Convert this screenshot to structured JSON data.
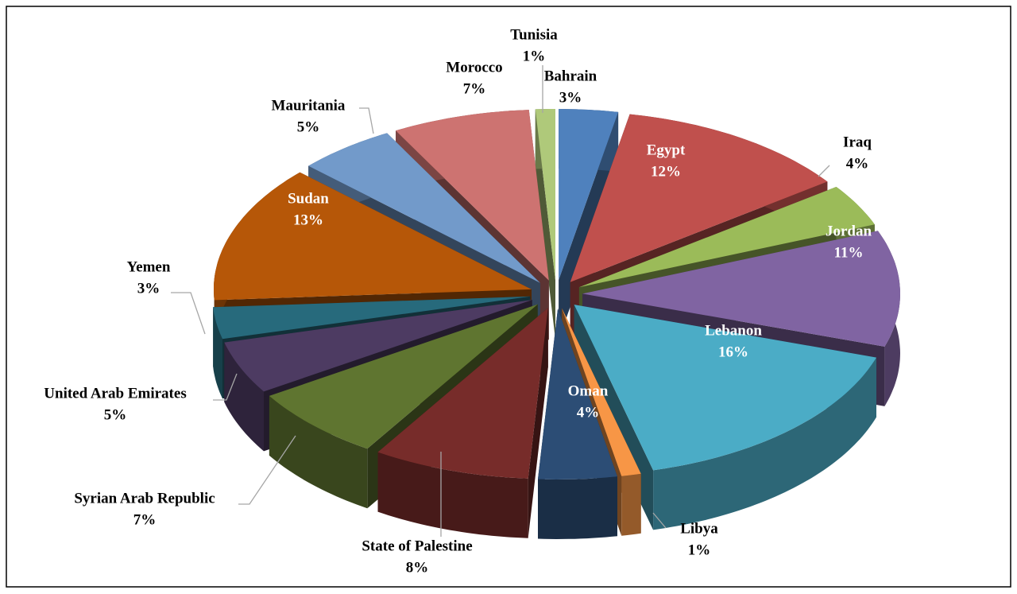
{
  "chart_data": {
    "type": "pie",
    "categories": [
      "Bahrain",
      "Egypt",
      "Iraq",
      "Jordan",
      "Lebanon",
      "Libya",
      "Oman",
      "State of Palestine",
      "Syrian Arab Republic",
      "United Arab Emirates",
      "Yemen",
      "Sudan",
      "Mauritania",
      "Morocco",
      "Tunisia"
    ],
    "values": [
      3,
      12,
      4,
      11,
      16,
      1,
      4,
      8,
      7,
      5,
      3,
      13,
      5,
      7,
      1
    ],
    "value_labels": [
      "3%",
      "12%",
      "4%",
      "11%",
      "16%",
      "1%",
      "4%",
      "8%",
      "7%",
      "5%",
      "3%",
      "13%",
      "5%",
      "7%",
      "1%"
    ],
    "colors": [
      "#4f81bd",
      "#c0504d",
      "#9bbb59",
      "#8064a2",
      "#4bacc6",
      "#f79646",
      "#2c4d75",
      "#772c2a",
      "#5f7530",
      "#4d3b62",
      "#276a7c",
      "#b65708",
      "#729aca",
      "#cd7371",
      "#afc97a"
    ]
  }
}
